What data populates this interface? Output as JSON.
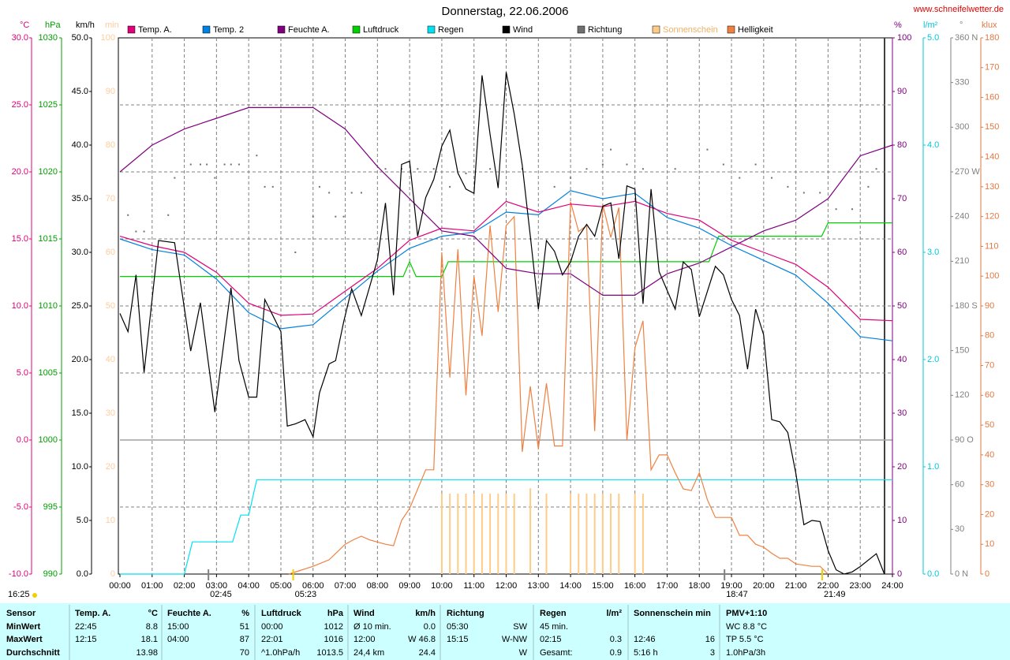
{
  "chart_data": {
    "type": "line",
    "title": "Donnerstag, 22.06.2006",
    "source": "www.schneifelwetter.de",
    "updated": "16:25",
    "xlim": [
      0,
      24
    ],
    "xticks": [
      {
        "value": 0,
        "label": "00:00"
      },
      {
        "value": 1,
        "label": "01:00"
      },
      {
        "value": 2,
        "label": "02:00"
      },
      {
        "value": 3,
        "label": "03:00"
      },
      {
        "value": 4,
        "label": "04:00"
      },
      {
        "value": 5,
        "label": "05:00"
      },
      {
        "value": 6,
        "label": "06:00"
      },
      {
        "value": 7,
        "label": "07:00"
      },
      {
        "value": 8,
        "label": "08:00"
      },
      {
        "value": 9,
        "label": "09:00"
      },
      {
        "value": 10,
        "label": "10:00"
      },
      {
        "value": 11,
        "label": "11:00"
      },
      {
        "value": 12,
        "label": "12:00"
      },
      {
        "value": 13,
        "label": "13:00"
      },
      {
        "value": 14,
        "label": "14:00"
      },
      {
        "value": 15,
        "label": "15:00"
      },
      {
        "value": 16,
        "label": "16:00"
      },
      {
        "value": 17,
        "label": "17:00"
      },
      {
        "value": 18,
        "label": "18:00"
      },
      {
        "value": 19,
        "label": "19:00"
      },
      {
        "value": 20,
        "label": "20:00"
      },
      {
        "value": 21,
        "label": "21:00"
      },
      {
        "value": 22,
        "label": "22:00"
      },
      {
        "value": 23,
        "label": "23:00"
      },
      {
        "value": 24,
        "label": "24:00"
      }
    ],
    "grid": true,
    "grid_axis": "temp",
    "axes": {
      "temp": {
        "unit": "°C",
        "color": "#e0007a",
        "ylim": [
          -10,
          30
        ],
        "yticks": [
          {
            "value": -10,
            "label": "-10.0"
          },
          {
            "value": -5,
            "label": "-5.0"
          },
          {
            "value": 0,
            "label": "0.0"
          },
          {
            "value": 5,
            "label": "5.0"
          },
          {
            "value": 10,
            "label": "10.0"
          },
          {
            "value": 15,
            "label": "15.0"
          },
          {
            "value": 20,
            "label": "20.0"
          },
          {
            "value": 25,
            "label": "25.0"
          },
          {
            "value": 30,
            "label": "30.0"
          }
        ]
      },
      "pressure": {
        "unit": "hPa",
        "color": "#00a000",
        "ylim": [
          990,
          1030
        ],
        "yticks": [
          990,
          995,
          1000,
          1005,
          1010,
          1015,
          1020,
          1025,
          1030
        ]
      },
      "wind": {
        "unit": "km/h",
        "color": "#000000",
        "ylim": [
          0,
          50
        ],
        "yticks": [
          {
            "value": 0,
            "label": "0.0"
          },
          {
            "value": 5,
            "label": "5.0"
          },
          {
            "value": 10,
            "label": "10.0"
          },
          {
            "value": 15,
            "label": "15.0"
          },
          {
            "value": 20,
            "label": "20.0"
          },
          {
            "value": 25,
            "label": "25.0"
          },
          {
            "value": 30,
            "label": "30.0"
          },
          {
            "value": 35,
            "label": "35.0"
          },
          {
            "value": 40,
            "label": "40.0"
          },
          {
            "value": 45,
            "label": "45.0"
          },
          {
            "value": 50,
            "label": "50.0"
          }
        ]
      },
      "sun": {
        "unit": "min",
        "color": "#ffcc99",
        "ylim": [
          0,
          100
        ],
        "yticks": [
          0,
          10,
          20,
          30,
          40,
          50,
          60,
          70,
          80,
          90,
          100
        ]
      },
      "humidity": {
        "unit": "%",
        "color": "#800080",
        "ylim": [
          0,
          100
        ],
        "yticks": [
          0,
          10,
          20,
          30,
          40,
          50,
          60,
          70,
          80,
          90,
          100
        ]
      },
      "rain": {
        "unit": "l/m²",
        "color": "#00c8d8",
        "ylim": [
          0,
          5
        ],
        "yticks": [
          {
            "value": 0,
            "label": "0.0"
          },
          {
            "value": 1,
            "label": "1.0"
          },
          {
            "value": 2,
            "label": "2.0"
          },
          {
            "value": 3,
            "label": "3.0"
          },
          {
            "value": 4,
            "label": "4.0"
          },
          {
            "value": 5,
            "label": "5.0"
          }
        ]
      },
      "direction": {
        "unit": "°",
        "color": "#808080",
        "ylim": [
          0,
          360
        ],
        "yticks": [
          {
            "value": 0,
            "label": "0 N"
          },
          30,
          60,
          {
            "value": 90,
            "label": "90 O"
          },
          120,
          150,
          {
            "value": 180,
            "label": "180 S"
          },
          210,
          240,
          {
            "value": 270,
            "label": "270 W"
          },
          300,
          330,
          {
            "value": 360,
            "label": "360 N"
          }
        ]
      },
      "light": {
        "unit": "klux",
        "color": "#e07840",
        "ylim": [
          0,
          180
        ],
        "yticks": [
          0,
          10,
          20,
          30,
          40,
          50,
          60,
          70,
          80,
          90,
          100,
          110,
          120,
          130,
          140,
          150,
          160,
          170,
          180
        ]
      }
    },
    "x": [
      0,
      1,
      2,
      3,
      4,
      5,
      6,
      7,
      8,
      9,
      10,
      11,
      12,
      13,
      14,
      15,
      16,
      17,
      18,
      19,
      20,
      21,
      22,
      23,
      24
    ],
    "series": [
      {
        "name": "Temp. A.",
        "color": "#e0007a",
        "axis": "temp",
        "kind": "line",
        "values": [
          15.2,
          14.5,
          14.0,
          12.5,
          10.2,
          9.3,
          9.4,
          11.1,
          12.8,
          14.9,
          15.8,
          15.6,
          17.8,
          17.0,
          17.6,
          17.4,
          17.8,
          16.9,
          16.4,
          14.9,
          14.0,
          13.1,
          11.4,
          9.0,
          8.9
        ]
      },
      {
        "name": "Temp. 2",
        "color": "#0080e0",
        "axis": "temp",
        "kind": "line",
        "values": [
          15.0,
          14.2,
          13.8,
          12.0,
          9.5,
          8.3,
          8.6,
          10.6,
          12.6,
          14.3,
          15.2,
          15.5,
          17.0,
          16.8,
          18.6,
          18.0,
          18.4,
          16.6,
          15.8,
          14.5,
          13.4,
          12.3,
          10.2,
          7.7,
          7.4
        ]
      },
      {
        "name": "Feuchte A.",
        "color": "#800080",
        "axis": "humidity",
        "kind": "line",
        "values": [
          75,
          80,
          83,
          85,
          87,
          87,
          87,
          83,
          76,
          70,
          64,
          63,
          57,
          56,
          56,
          52,
          52,
          56,
          58,
          61,
          64,
          66,
          70,
          78,
          80
        ]
      },
      {
        "name": "Luftdruck",
        "color": "#00d000",
        "axis": "pressure",
        "kind": "line",
        "x": [
          0,
          8.8,
          9.0,
          9.2,
          10.0,
          10.2,
          18.3,
          18.6,
          21.8,
          22.0,
          24
        ],
        "values": [
          1012.2,
          1012.2,
          1013.3,
          1012.2,
          1012.2,
          1013.3,
          1013.3,
          1015.2,
          1015.2,
          1016.2,
          1016.2
        ]
      },
      {
        "name": "Regen",
        "color": "#00e0f0",
        "axis": "rain",
        "kind": "line",
        "x": [
          0,
          2.0,
          2.25,
          3.5,
          3.75,
          4.0,
          4.25,
          24
        ],
        "values": [
          0,
          0,
          0.3,
          0.3,
          0.55,
          0.55,
          0.88,
          0.88
        ]
      },
      {
        "name": "Wind",
        "color": "#000000",
        "axis": "wind",
        "kind": "line",
        "x": [
          0,
          0.25,
          0.5,
          0.75,
          1.2,
          1.7,
          2.2,
          2.5,
          2.95,
          3.45,
          3.7,
          4,
          4.25,
          4.5,
          4.75,
          5,
          5.2,
          5.45,
          5.75,
          6,
          6.2,
          6.5,
          6.7,
          6.95,
          7.2,
          7.5,
          8,
          8.25,
          8.5,
          8.75,
          9,
          9.25,
          9.5,
          9.75,
          10,
          10.25,
          10.5,
          10.75,
          11,
          11.25,
          11.5,
          11.75,
          12,
          12.25,
          12.5,
          12.75,
          13,
          13.25,
          13.5,
          13.75,
          14,
          14.25,
          14.5,
          14.75,
          15,
          15.25,
          15.5,
          15.75,
          16,
          16.25,
          16.5,
          16.75,
          17.25,
          17.5,
          17.75,
          18,
          18.5,
          18.75,
          19,
          19.25,
          19.5,
          19.75,
          20,
          20.25,
          20.5,
          20.75,
          21,
          21.25,
          21.5,
          21.75,
          22,
          22.25,
          22.5,
          22.75,
          23,
          23.5,
          23.75
        ],
        "values": [
          24.3,
          22.6,
          27.9,
          18.8,
          31.1,
          30.9,
          20.8,
          25.3,
          15.1,
          26.7,
          19.9,
          16.5,
          16.5,
          25.6,
          24.1,
          22.6,
          13.8,
          14.0,
          14.4,
          12.8,
          16.9,
          19.6,
          19.9,
          23.5,
          26.6,
          24.1,
          29.3,
          34.6,
          26.0,
          38.2,
          38.5,
          31.5,
          35.1,
          36.8,
          39.9,
          41.4,
          37.4,
          35.9,
          35.5,
          46.5,
          41.0,
          36.0,
          46.8,
          42.9,
          38.1,
          31.5,
          24.7,
          31.1,
          30.1,
          27.9,
          29.1,
          31.5,
          32.6,
          31.5,
          34.3,
          34.6,
          29.4,
          36.2,
          35.9,
          25.2,
          35.9,
          28.2,
          24.7,
          29.1,
          28.4,
          24.0,
          28.7,
          27.9,
          25.6,
          24.1,
          19.1,
          24.7,
          22.3,
          14.4,
          14.2,
          13.2,
          9.4,
          4.6,
          5.0,
          4.9,
          2.2,
          0.4,
          0,
          0.2,
          0.7,
          1.9,
          0
        ]
      },
      {
        "name": "Richtung",
        "color": "#707070",
        "axis": "direction",
        "kind": "dots",
        "x": [
          0.25,
          0.5,
          0.75,
          1.5,
          1.7,
          2.2,
          2.5,
          2.7,
          2.95,
          3.25,
          3.45,
          3.7,
          4.25,
          4.5,
          4.75,
          5.45,
          6,
          6.2,
          6.5,
          6.7,
          6.95,
          7.2,
          7.5,
          8.25,
          8.75,
          9.25,
          9.75,
          10.25,
          10.75,
          11.5,
          12.5,
          13.5,
          14,
          14.5,
          15,
          15.25,
          15.75,
          16.25,
          17.25,
          18.25,
          18.75,
          19.25,
          19.75,
          20.25,
          20.75,
          21.25,
          21.75,
          22.25,
          22.75,
          23.25,
          23.5
        ],
        "values": [
          241,
          230,
          230,
          241,
          266,
          275,
          275,
          275,
          266,
          275,
          275,
          275,
          281,
          260,
          260,
          216,
          240,
          260,
          256,
          240,
          240,
          256,
          256,
          272,
          272,
          272,
          272,
          260,
          269,
          272,
          272,
          260,
          266,
          272,
          275,
          285,
          275,
          272,
          272,
          285,
          275,
          266,
          275,
          266,
          260,
          256,
          256,
          245,
          245,
          260,
          272
        ]
      },
      {
        "name": "Sonnenschein",
        "color": "#ffcc88",
        "axis": "sun",
        "kind": "bars",
        "x": [
          10,
          10.25,
          10.5,
          10.75,
          11,
          11.25,
          11.5,
          11.75,
          12,
          12.25,
          12.75,
          13.25,
          14,
          14.25,
          14.5,
          14.75,
          15,
          15.25,
          15.5,
          16,
          16.25
        ],
        "values": [
          15,
          15,
          15,
          15,
          15,
          15,
          15,
          15,
          15,
          15,
          16,
          15,
          15,
          15,
          15,
          15,
          15,
          15,
          15,
          15,
          15
        ]
      },
      {
        "name": "Helligkeit",
        "color": "#f08040",
        "axis": "light",
        "kind": "line",
        "x": [
          5.25,
          6,
          6.5,
          7,
          7.25,
          7.5,
          7.75,
          8.25,
          8.5,
          8.75,
          9,
          9.5,
          9.75,
          10,
          10.25,
          10.5,
          10.75,
          11,
          11.25,
          11.5,
          11.75,
          12,
          12.25,
          12.5,
          12.75,
          13,
          13.25,
          13.5,
          13.75,
          14,
          14.25,
          14.5,
          14.75,
          15,
          15.25,
          15.5,
          15.75,
          16,
          16.25,
          16.5,
          16.75,
          17,
          17.25,
          17.5,
          17.75,
          18,
          18.25,
          18.5,
          19,
          19.25,
          19.5,
          19.75,
          20,
          20.25,
          20.5,
          20.75,
          21,
          21.25,
          21.5,
          21.75,
          22
        ],
        "values": [
          0,
          2.6,
          4.8,
          10,
          11.5,
          12.7,
          11.5,
          10,
          9.5,
          18,
          22,
          35,
          35,
          108,
          66,
          109,
          60,
          100,
          80,
          117,
          88,
          117,
          120,
          41,
          63,
          42,
          64,
          43,
          43,
          125,
          115,
          117,
          48,
          124,
          113,
          123,
          45,
          76,
          85,
          35,
          40,
          40,
          34,
          28.6,
          28,
          34,
          25,
          19,
          19,
          13,
          13,
          10,
          9,
          7,
          5.3,
          5.3,
          3.4,
          3,
          2.6,
          2.6,
          0
        ]
      }
    ],
    "markers": [
      {
        "x": 2.75,
        "label": "02:45",
        "color": "#808080"
      },
      {
        "x": 5.383,
        "label": "05:23",
        "color": "#f0d000"
      },
      {
        "x": 18.783,
        "label": "18:47",
        "color": "#808080"
      },
      {
        "x": 21.817,
        "label": "21:49",
        "color": "#f0d000"
      }
    ]
  },
  "table": {
    "header": [
      "Sensor",
      "Temp. A.",
      "°C",
      "Feuchte A.",
      "%",
      "Luftdruck",
      "hPa",
      "Wind",
      "km/h",
      "Richtung",
      null,
      "Regen",
      "l/m²",
      "Sonnenschein min",
      null,
      "PMV+1:10"
    ],
    "rows": [
      [
        "MinWert",
        "22:45",
        "8.8",
        "15:00",
        "51",
        "00:00",
        "1012",
        "Ø 10 min.",
        "0.0",
        "05:30",
        "SW",
        "45 min.",
        null,
        null,
        null,
        "WC 8.8 °C"
      ],
      [
        "MaxWert",
        "12:15",
        "18.1",
        "04:00",
        "87",
        "22:01",
        "1016",
        "12:00",
        "W 46.8",
        "15:15",
        "W-NW",
        "02:15",
        "0.3",
        "12:46",
        "16",
        "TP 5.5 °C"
      ],
      [
        "Durchschnitt",
        null,
        "13.98",
        null,
        "70",
        "^1.0hPa/h",
        "1013.5",
        "24,4 km",
        "24.4",
        null,
        "W",
        "Gesamt:",
        "0.9",
        "5:16 h",
        "3",
        "1.0hPa/3h"
      ]
    ]
  }
}
